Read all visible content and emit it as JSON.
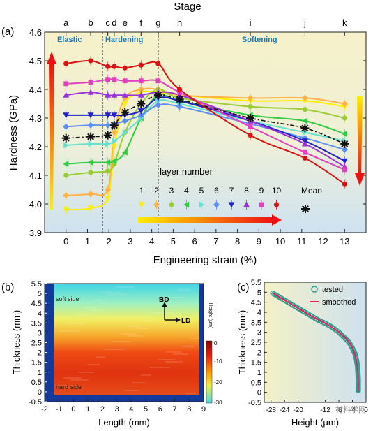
{
  "panels": {
    "a": {
      "label": "(a)",
      "top_axis_title": "Stage",
      "stages": [
        {
          "label": "a",
          "x": 0
        },
        {
          "label": "b",
          "x": 1.15
        },
        {
          "label": "c",
          "x": 1.95
        },
        {
          "label": "d",
          "x": 2.25
        },
        {
          "label": "e",
          "x": 2.75
        },
        {
          "label": "f",
          "x": 3.5
        },
        {
          "label": "g",
          "x": 4.3
        },
        {
          "label": "h",
          "x": 5.3
        },
        {
          "label": "i",
          "x": 8.6
        },
        {
          "label": "j",
          "x": 11.15
        },
        {
          "label": "k",
          "x": 13
        }
      ],
      "regions": [
        {
          "label": "Elastic",
          "x_from": -1,
          "x_to": 1.7,
          "color": "#1f78b4"
        },
        {
          "label": "Hardening",
          "x_from": 1.7,
          "x_to": 4.3,
          "color": "#1f78b4"
        },
        {
          "label": "Softening",
          "x_from": 4.3,
          "x_to": 14,
          "color": "#1f78b4"
        }
      ],
      "legend_title": "layer number",
      "arrow_color_start": "#ffee00",
      "arrow_color_end": "#ee1111"
    },
    "b": {
      "label": "(b)",
      "soft_side": "soft side",
      "hard_side": "hard side",
      "dir_bd": "BD",
      "dir_ld": "LD",
      "colorbar_title": "Height (μm)",
      "colorbar_ticks": [
        "0",
        "-10",
        "-20",
        "-30"
      ]
    },
    "c": {
      "label": "(c)",
      "legend_tested": "tested",
      "legend_smoothed": "smoothed",
      "tested_color": "#2a9d8f",
      "smoothed_color": "#e0245e"
    }
  },
  "watermark": "材料学网",
  "chart_data": [
    {
      "type": "line",
      "title": "",
      "xlabel": "Engineering strain (%)",
      "ylabel": "Hardness (GPa)",
      "xlim": [
        -1,
        14
      ],
      "ylim": [
        3.9,
        4.6
      ],
      "xticks": [
        "0",
        "1",
        "2",
        "3",
        "4",
        "5",
        "6",
        "7",
        "8",
        "9",
        "10",
        "11",
        "12",
        "13"
      ],
      "yticks": [
        "3.9",
        "4.0",
        "4.1",
        "4.2",
        "4.3",
        "4.4",
        "4.5",
        "4.6"
      ],
      "x": [
        0,
        1.15,
        1.95,
        2.25,
        2.75,
        3.5,
        4.3,
        5.3,
        8.6,
        11.15,
        13
      ],
      "series": [
        {
          "name": "1",
          "color": "#ffee00",
          "marker": "tri-down",
          "values": [
            3.98,
            3.985,
            4.02,
            4.2,
            4.35,
            4.39,
            4.39,
            4.38,
            4.36,
            4.36,
            4.34
          ]
        },
        {
          "name": "2",
          "color": "#ffb347",
          "marker": "diamond",
          "values": [
            4.03,
            4.035,
            4.05,
            4.25,
            4.37,
            4.4,
            4.4,
            4.38,
            4.37,
            4.37,
            4.35
          ]
        },
        {
          "name": "3",
          "color": "#9acd32",
          "marker": "circle",
          "values": [
            4.1,
            4.11,
            4.115,
            4.14,
            4.25,
            4.35,
            4.4,
            4.37,
            4.34,
            4.33,
            4.3
          ]
        },
        {
          "name": "4",
          "color": "#2ecc40",
          "marker": "tri-left",
          "values": [
            4.14,
            4.145,
            4.145,
            4.15,
            4.18,
            4.3,
            4.38,
            4.36,
            4.31,
            4.29,
            4.245
          ]
        },
        {
          "name": "5",
          "color": "#66e0d0",
          "marker": "tri-right",
          "values": [
            4.205,
            4.21,
            4.21,
            4.22,
            4.25,
            4.3,
            4.36,
            4.35,
            4.29,
            4.25,
            4.22
          ]
        },
        {
          "name": "6",
          "color": "#5b8ff9",
          "marker": "diamond",
          "values": [
            4.27,
            4.275,
            4.275,
            4.28,
            4.29,
            4.31,
            4.345,
            4.34,
            4.28,
            4.23,
            4.19
          ]
        },
        {
          "name": "7",
          "color": "#2020cc",
          "marker": "tri-down",
          "values": [
            4.31,
            4.31,
            4.31,
            4.31,
            4.31,
            4.325,
            4.37,
            4.36,
            4.29,
            4.22,
            4.15
          ]
        },
        {
          "name": "8",
          "color": "#9b30d9",
          "marker": "tri-up",
          "values": [
            4.38,
            4.39,
            4.38,
            4.38,
            4.38,
            4.38,
            4.39,
            4.38,
            4.29,
            4.21,
            4.13
          ]
        },
        {
          "name": "9",
          "color": "#e040c0",
          "marker": "square",
          "values": [
            4.42,
            4.425,
            4.435,
            4.435,
            4.43,
            4.43,
            4.43,
            4.39,
            4.27,
            4.18,
            4.12
          ]
        },
        {
          "name": "10",
          "color": "#dd1111",
          "marker": "circle",
          "values": [
            4.49,
            4.5,
            4.48,
            4.48,
            4.475,
            4.485,
            4.49,
            4.4,
            4.24,
            4.16,
            4.07
          ]
        },
        {
          "name": "Mean",
          "color": "#111111",
          "marker": "star",
          "dashed": true,
          "values": [
            4.23,
            4.235,
            4.24,
            4.275,
            4.32,
            4.35,
            4.38,
            4.365,
            4.3,
            4.265,
            4.21
          ]
        }
      ]
    },
    {
      "type": "heatmap",
      "title": "",
      "xlabel": "Length (mm)",
      "ylabel": "Thickness (mm)",
      "xlim": [
        -2,
        9
      ],
      "ylim": [
        -0.5,
        5.5
      ],
      "xticks": [
        "-2",
        "-1",
        "0",
        "1",
        "2",
        "3",
        "4",
        "5",
        "6",
        "7",
        "8",
        "9"
      ],
      "yticks": [
        "-0.5",
        "0",
        "0.5",
        "1",
        "1.5",
        "2",
        "2.5",
        "3",
        "3.5",
        "4",
        "4.5",
        "5",
        "5.5"
      ],
      "colorbar_range": [
        -30,
        0
      ],
      "profile": {
        "thickness": [
          0,
          1,
          2,
          3,
          3.5,
          4,
          5
        ],
        "height": [
          -5,
          -5,
          -7,
          -15,
          -19,
          -23,
          -27
        ]
      }
    },
    {
      "type": "scatter",
      "title": "",
      "xlabel": "Height (μm)",
      "ylabel": "Thickness (mm)",
      "xlim": [
        -30,
        0
      ],
      "ylim": [
        -0.5,
        5.5
      ],
      "xticks": [
        "-28",
        "-24",
        "-20",
        "-12",
        "-8",
        "-4",
        "0"
      ],
      "yticks": [
        "-0.5",
        "0",
        "0.5",
        "1",
        "1.5",
        "2",
        "2.5",
        "3",
        "3.5",
        "4",
        "4.5",
        "5",
        "5.5"
      ],
      "series": [
        {
          "name": "tested",
          "x": [
            -27.5,
            -26,
            -24,
            -22,
            -20,
            -18,
            -16,
            -14,
            -12,
            -10,
            -8,
            -6.5,
            -5,
            -4,
            -3.2,
            -2.8,
            -2.5,
            -2.4,
            -2.3,
            -2.3,
            -2.3,
            -2.3
          ],
          "y": [
            4.95,
            4.8,
            4.6,
            4.4,
            4.2,
            4.0,
            3.8,
            3.6,
            3.45,
            3.25,
            3.0,
            2.75,
            2.5,
            2.2,
            1.9,
            1.6,
            1.3,
            1.0,
            0.7,
            0.4,
            0.2,
            0.05
          ]
        },
        {
          "name": "smoothed",
          "x": [
            -27.5,
            -24,
            -20,
            -16,
            -12,
            -8,
            -5,
            -3.5,
            -2.6,
            -2.3,
            -2.3
          ],
          "y": [
            4.95,
            4.6,
            4.2,
            3.8,
            3.45,
            3.0,
            2.5,
            2.0,
            1.3,
            0.6,
            0.05
          ]
        }
      ]
    }
  ]
}
